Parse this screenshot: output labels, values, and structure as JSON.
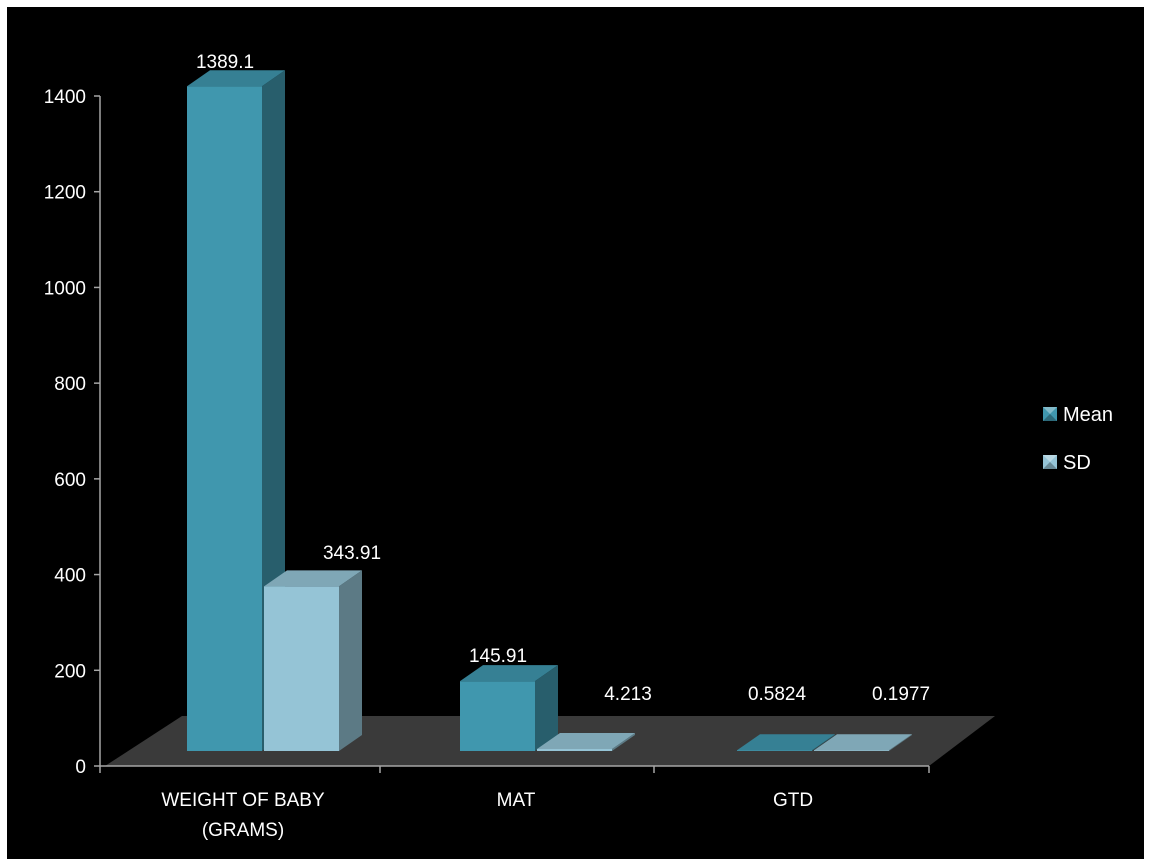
{
  "chart_data": {
    "type": "bar",
    "categories": [
      "WEIGHT OF BABY (GRAMS)",
      "MAT",
      "GTD"
    ],
    "category_lines": [
      [
        "WEIGHT OF BABY",
        "(GRAMS)"
      ],
      [
        "MAT"
      ],
      [
        "GTD"
      ]
    ],
    "series": [
      {
        "name": "Mean",
        "values": [
          1389.1,
          145.91,
          0.5824
        ],
        "labels": [
          "1389.1",
          "145.91",
          "0.5824"
        ],
        "color": "#4097ae"
      },
      {
        "name": "SD",
        "values": [
          343.91,
          4.213,
          0.1977
        ],
        "labels": [
          "343.91",
          "4.213",
          "0.1977"
        ],
        "color": "#95c4d6"
      }
    ],
    "y_ticks": [
      "0",
      "200",
      "400",
      "600",
      "800",
      "1000",
      "1200",
      "1400"
    ],
    "ylim": [
      0,
      1400
    ],
    "title": "",
    "xlabel": "",
    "ylabel": "",
    "legend_position": "right",
    "three_d": true,
    "grid": false,
    "colors": {
      "background": "#000000",
      "floor": "#3a3a3a",
      "axis": "#a6a6a6",
      "text": "#ffffff"
    }
  }
}
